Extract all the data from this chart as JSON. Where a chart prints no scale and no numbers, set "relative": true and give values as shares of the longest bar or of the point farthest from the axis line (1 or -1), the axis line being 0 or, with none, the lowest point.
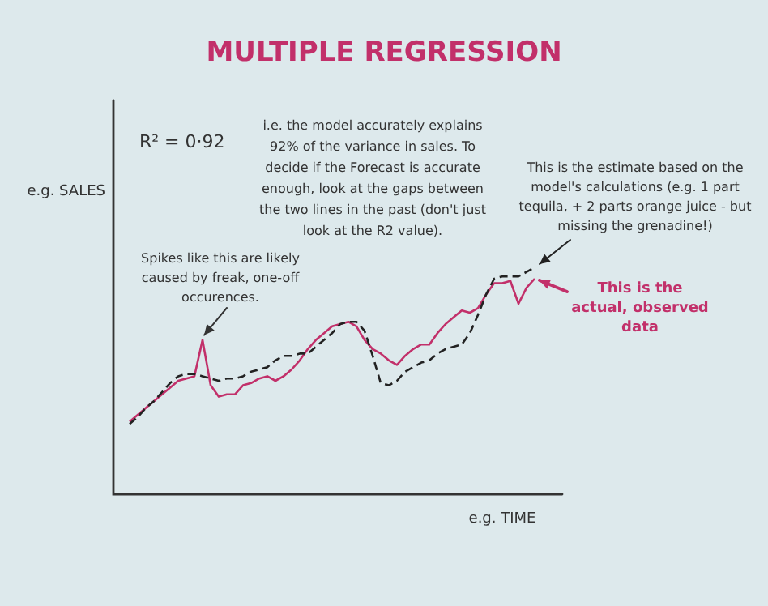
{
  "chart_data": {
    "type": "line",
    "relative": true,
    "title": "MULTIPLE REGRESSION",
    "xlabel": "e.g. TIME",
    "ylabel": "e.g. SALES",
    "legend": "right",
    "marker": "none",
    "categories": [
      null,
      null,
      null,
      null,
      null,
      null,
      null,
      null,
      null,
      null,
      null,
      null,
      null,
      null,
      null,
      null,
      null,
      null,
      null,
      null,
      null,
      null,
      null,
      null,
      null,
      null,
      null,
      null,
      null,
      null,
      null,
      null,
      null,
      null,
      null,
      null,
      null,
      null,
      null,
      null,
      null,
      null,
      null,
      null,
      null,
      null,
      null,
      null,
      null,
      null,
      null
    ],
    "series": [
      {
        "name": "This is the estimate based on the model's calculations (e.g. 1 part tequila, + 2 parts orange juice - but missing the grenadine!)",
        "color": "#222222",
        "line_style": "dashed",
        "values": [
          0.31,
          0.34,
          0.38,
          0.41,
          0.45,
          0.49,
          0.52,
          0.53,
          0.53,
          0.52,
          0.51,
          0.5,
          0.51,
          0.51,
          0.52,
          0.54,
          0.55,
          0.56,
          0.59,
          0.61,
          0.61,
          0.62,
          0.62,
          0.65,
          0.68,
          0.71,
          0.75,
          0.76,
          0.76,
          0.72,
          0.61,
          0.49,
          0.48,
          0.5,
          0.54,
          0.56,
          0.58,
          0.59,
          0.62,
          0.64,
          0.65,
          0.66,
          0.71,
          0.79,
          0.88,
          0.95,
          0.96,
          0.96,
          0.96,
          0.98,
          1
        ]
      },
      {
        "name": "This is the actual, observed data",
        "color": "#c2306a",
        "line_style": "solid",
        "values": [
          0.32,
          0.35,
          0.38,
          0.41,
          0.44,
          0.47,
          0.5,
          0.51,
          0.52,
          0.68,
          0.48,
          0.43,
          0.44,
          0.44,
          0.48,
          0.49,
          0.51,
          0.52,
          0.5,
          0.52,
          0.55,
          0.59,
          0.64,
          0.68,
          0.71,
          0.74,
          0.75,
          0.76,
          0.74,
          0.68,
          0.64,
          0.62,
          0.59,
          0.57,
          0.61,
          0.64,
          0.66,
          0.66,
          0.71,
          0.75,
          0.78,
          0.81,
          0.8,
          0.82,
          0.88,
          0.93,
          0.93,
          0.94,
          0.84,
          0.91,
          0.95
        ]
      }
    ],
    "annotations": [
      "R² = 0·92",
      "i.e. the model accurately explains 92% of the variance in sales. To decide if the Forecast is accurate enough, look at the gaps between the two lines in the past (don't just look at the R2 value).",
      "Spikes like this are likely caused by freak, one-off occurences."
    ]
  }
}
